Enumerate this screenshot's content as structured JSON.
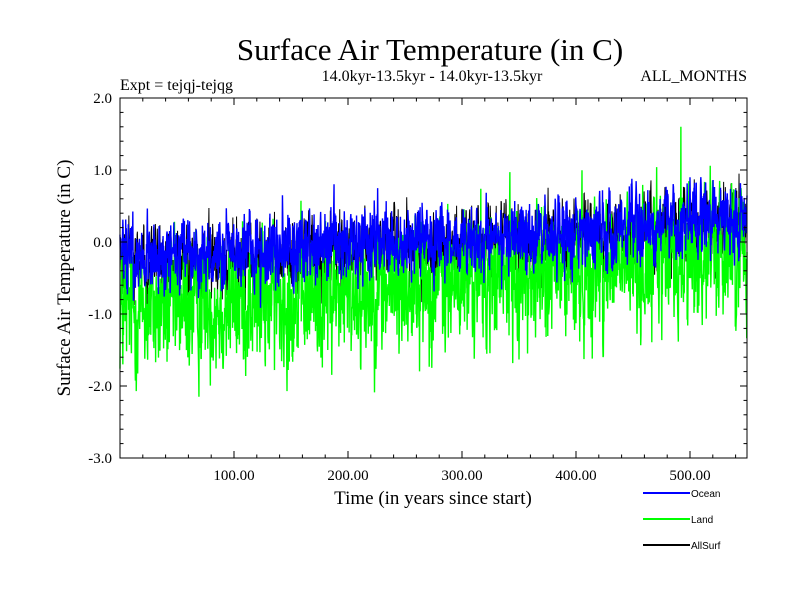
{
  "chart_data": {
    "type": "line",
    "title": "Surface Air Temperature (in C)",
    "subtitle_left": "Expt = tejqj-tejqg",
    "subtitle_center": "14.0kyr-13.5kyr - 14.0kyr-13.5kyr",
    "subtitle_right": "ALL_MONTHS",
    "xlabel": "Time (in years since start)",
    "ylabel": "Surface Air Temperature (in C)",
    "xlim": [
      0,
      550
    ],
    "ylim": [
      -3.0,
      2.0
    ],
    "x_ticks": [
      100,
      200,
      300,
      400,
      500
    ],
    "x_tick_labels": [
      "100.00",
      "200.00",
      "300.00",
      "400.00",
      "500.00"
    ],
    "y_ticks": [
      2.0,
      1.0,
      0.0,
      -1.0,
      -2.0,
      -3.0
    ],
    "y_tick_labels": [
      "2.0",
      "1.0",
      "0.0",
      "-1.0",
      "-2.0",
      "-3.0"
    ],
    "grid": false,
    "legend_position": "bottom-right",
    "series": [
      {
        "name": "Land",
        "color": "#00ff00",
        "trend": {
          "x": [
            0,
            100,
            200,
            300,
            400,
            500,
            550
          ],
          "y": [
            -0.95,
            -0.85,
            -0.7,
            -0.55,
            -0.4,
            -0.2,
            -0.05
          ]
        },
        "noise_amplitude": 0.55,
        "extremes": {
          "min": -2.4,
          "max": 1.6,
          "max_at_year": 492
        }
      },
      {
        "name": "Ocean",
        "color": "#0000ff",
        "trend": {
          "x": [
            0,
            100,
            200,
            300,
            400,
            500,
            550
          ],
          "y": [
            -0.2,
            -0.15,
            -0.05,
            0.02,
            0.1,
            0.3,
            0.35
          ]
        },
        "noise_amplitude": 0.3,
        "extremes": {
          "min": -0.95,
          "max": 0.9
        }
      },
      {
        "name": "AllSurf",
        "color": "#000000",
        "trend": {
          "x": [
            0,
            100,
            200,
            300,
            400,
            500,
            550
          ],
          "y": [
            -0.3,
            -0.25,
            -0.15,
            -0.05,
            0.05,
            0.2,
            0.3
          ]
        },
        "noise_amplitude": 0.3
      }
    ],
    "legend": [
      {
        "label": "Ocean",
        "color": "#0000ff"
      },
      {
        "label": "Land",
        "color": "#00ff00"
      },
      {
        "label": "AllSurf",
        "color": "#000000"
      }
    ]
  }
}
